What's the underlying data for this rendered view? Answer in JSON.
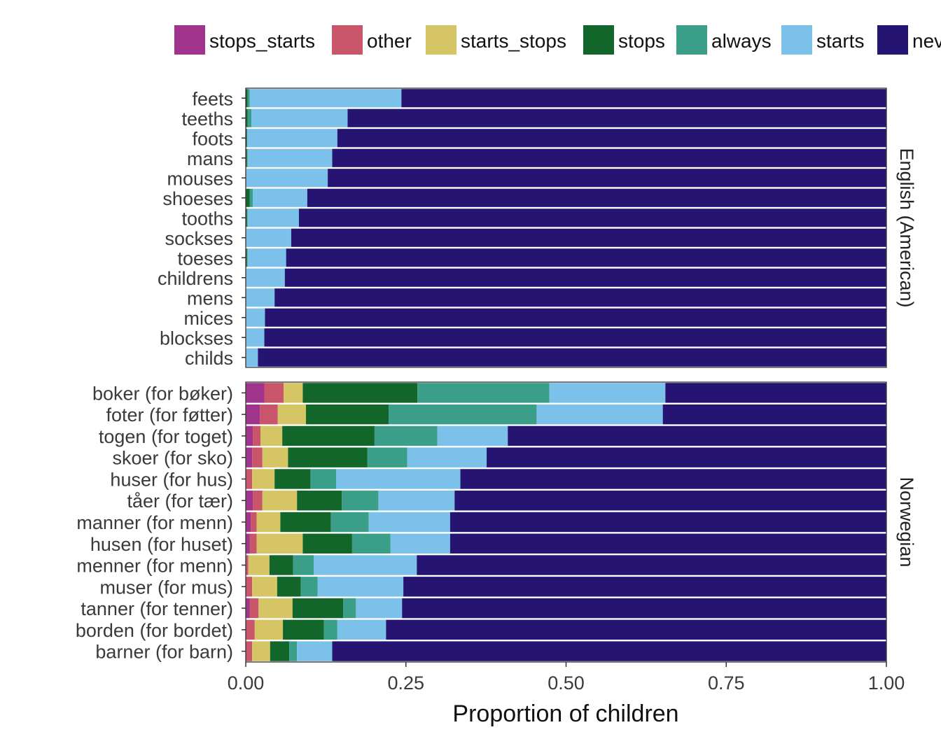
{
  "chart_data": {
    "type": "bar",
    "orientation": "horizontal",
    "stacked": true,
    "xlabel": "Proportion of children",
    "ylabel": "",
    "xlim": [
      0,
      1
    ],
    "x_ticks": [
      "0.00",
      "0.25",
      "0.50",
      "0.75",
      "1.00"
    ],
    "legend_position": "top",
    "legend": [
      {
        "key": "stops_starts",
        "label": "stops_starts",
        "color": "#A0348C"
      },
      {
        "key": "other",
        "label": "other",
        "color": "#C85569"
      },
      {
        "key": "starts_stops",
        "label": "starts_stops",
        "color": "#D6C564"
      },
      {
        "key": "stops",
        "label": "stops",
        "color": "#13662A"
      },
      {
        "key": "always",
        "label": "always",
        "color": "#3A9E88"
      },
      {
        "key": "starts",
        "label": "starts",
        "color": "#7BC1EA"
      },
      {
        "key": "never",
        "label": "never",
        "color": "#261473"
      }
    ],
    "series_order": [
      "stops_starts",
      "other",
      "starts_stops",
      "stops",
      "always",
      "starts",
      "never"
    ],
    "panels": [
      {
        "strip": "English (American)",
        "rows": [
          {
            "label": "feets",
            "values": [
              0,
              0,
              0,
              0.003,
              0.003,
              0.237,
              0.757
            ]
          },
          {
            "label": "teeths",
            "values": [
              0,
              0,
              0,
              0.003,
              0.006,
              0.15,
              0.841
            ]
          },
          {
            "label": "foots",
            "values": [
              0,
              0,
              0,
              0.002,
              0,
              0.141,
              0.857
            ]
          },
          {
            "label": "mans",
            "values": [
              0,
              0,
              0,
              0.002,
              0.001,
              0.132,
              0.865
            ]
          },
          {
            "label": "mouses",
            "values": [
              0,
              0,
              0,
              0,
              0,
              0.128,
              0.872
            ]
          },
          {
            "label": "shoeses",
            "values": [
              0,
              0,
              0,
              0.006,
              0.005,
              0.085,
              0.904
            ]
          },
          {
            "label": "tooths",
            "values": [
              0,
              0,
              0,
              0.002,
              0.001,
              0.08,
              0.917
            ]
          },
          {
            "label": "sockses",
            "values": [
              0,
              0,
              0,
              0,
              0,
              0.071,
              0.929
            ]
          },
          {
            "label": "toeses",
            "values": [
              0,
              0,
              0,
              0.002,
              0.001,
              0.06,
              0.937
            ]
          },
          {
            "label": "childrens",
            "values": [
              0,
              0,
              0,
              0,
              0,
              0.061,
              0.939
            ]
          },
          {
            "label": "mens",
            "values": [
              0,
              0,
              0,
              0,
              0,
              0.045,
              0.955
            ]
          },
          {
            "label": "mices",
            "values": [
              0,
              0,
              0,
              0,
              0,
              0.03,
              0.97
            ]
          },
          {
            "label": "blockses",
            "values": [
              0,
              0,
              0,
              0,
              0,
              0.029,
              0.971
            ]
          },
          {
            "label": "childs",
            "values": [
              0,
              0,
              0,
              0,
              0,
              0.019,
              0.981
            ]
          }
        ]
      },
      {
        "strip": "Norwegian",
        "rows": [
          {
            "label": "boker (for bøker)",
            "values": [
              0.029,
              0.03,
              0.03,
              0.179,
              0.206,
              0.181,
              0.345
            ]
          },
          {
            "label": "foter (for føtter)",
            "values": [
              0.022,
              0.028,
              0.044,
              0.129,
              0.231,
              0.197,
              0.349
            ]
          },
          {
            "label": "togen (for toget)",
            "values": [
              0.011,
              0.012,
              0.034,
              0.144,
              0.098,
              0.11,
              0.591
            ]
          },
          {
            "label": "skoer (for sko)",
            "values": [
              0.01,
              0.016,
              0.04,
              0.124,
              0.062,
              0.124,
              0.624
            ]
          },
          {
            "label": "huser (for hus)",
            "values": [
              0,
              0.01,
              0.035,
              0.056,
              0.04,
              0.194,
              0.665
            ]
          },
          {
            "label": "tåer (for tær)",
            "values": [
              0.011,
              0.015,
              0.054,
              0.07,
              0.057,
              0.119,
              0.674
            ]
          },
          {
            "label": "manner (for menn)",
            "values": [
              0.008,
              0.009,
              0.037,
              0.079,
              0.059,
              0.127,
              0.681
            ]
          },
          {
            "label": "husen (for huset)",
            "values": [
              0.006,
              0.011,
              0.072,
              0.077,
              0.06,
              0.093,
              0.681
            ]
          },
          {
            "label": "menner (for menn)",
            "values": [
              0,
              0.004,
              0.033,
              0.037,
              0.032,
              0.161,
              0.733
            ]
          },
          {
            "label": "muser (for mus)",
            "values": [
              0,
              0.01,
              0.039,
              0.037,
              0.026,
              0.134,
              0.754
            ]
          },
          {
            "label": "tanner (for tenner)",
            "values": [
              0.006,
              0.014,
              0.053,
              0.079,
              0.02,
              0.072,
              0.756
            ]
          },
          {
            "label": "borden (for bordet)",
            "values": [
              0,
              0.014,
              0.044,
              0.064,
              0.021,
              0.076,
              0.781
            ]
          },
          {
            "label": "barner (for barn)",
            "values": [
              0,
              0.01,
              0.028,
              0.03,
              0.012,
              0.055,
              0.865
            ]
          }
        ]
      }
    ]
  }
}
